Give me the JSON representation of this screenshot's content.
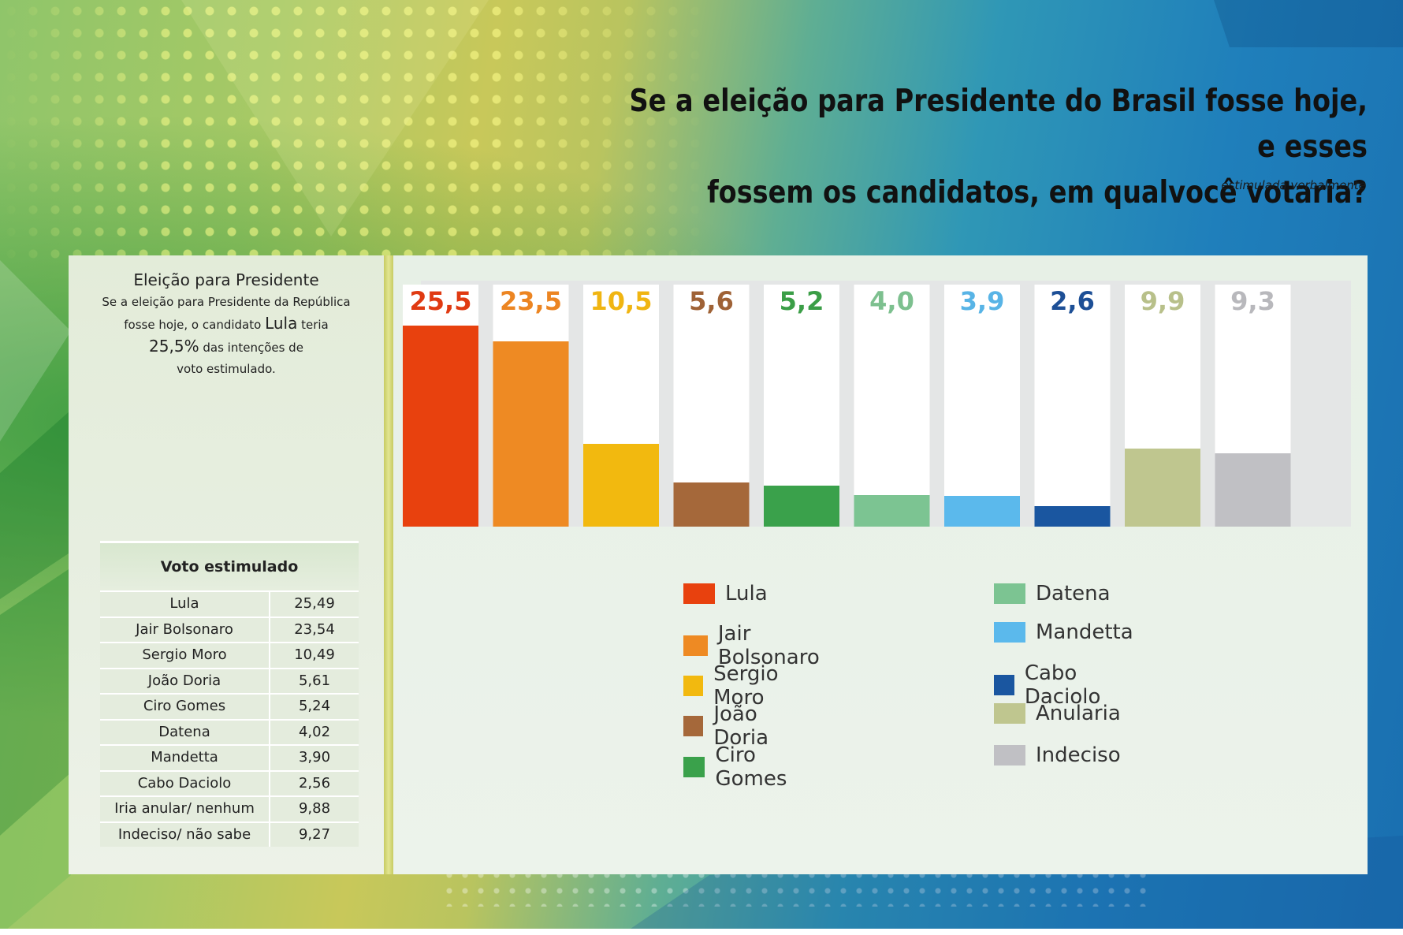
{
  "header": {
    "title_line1": "Se a eleição para Presidente do Brasil fosse hoje, e esses",
    "title_line2": "fossem os candidatos, em qualvocê votaria?",
    "note": "estimulada verbalmente"
  },
  "summary": {
    "heading": "Eleição para Presidente",
    "line1": "Se a eleição para Presidente da República",
    "line2_pre": "fosse hoje, o candidato ",
    "line2_name": "Lula",
    "line2_post": " teria",
    "line3_value": "25,5%",
    "line3_post": " das intenções de",
    "line4": "voto estimulado."
  },
  "table": {
    "header": "Voto estimulado",
    "rows": [
      {
        "name": "Lula",
        "value": "25,49"
      },
      {
        "name": "Jair Bolsonaro",
        "value": "23,54"
      },
      {
        "name": "Sergio Moro",
        "value": "10,49"
      },
      {
        "name": "João Doria",
        "value": "5,61"
      },
      {
        "name": "Ciro Gomes",
        "value": "5,24"
      },
      {
        "name": "Datena",
        "value": "4,02"
      },
      {
        "name": "Mandetta",
        "value": "3,90"
      },
      {
        "name": "Cabo Daciolo",
        "value": "2,56"
      },
      {
        "name": "Iria anular/ nenhum",
        "value": "9,88"
      },
      {
        "name": "Indeciso/ não sabe",
        "value": "9,27"
      }
    ]
  },
  "chart_data": {
    "type": "bar",
    "categories": [
      "Lula",
      "Jair Bolsonaro",
      "Sergio Moro",
      "João Doria",
      "Ciro Gomes",
      "Datena",
      "Mandetta",
      "Cabo Daciolo",
      "Anularia",
      "Indeciso"
    ],
    "values": [
      25.5,
      23.5,
      10.5,
      5.6,
      5.2,
      4.0,
      3.9,
      2.6,
      9.9,
      9.3
    ],
    "labels": [
      "25,5",
      "23,5",
      "10,5",
      "5,6",
      "5,2",
      "4,0",
      "3,9",
      "2,6",
      "9,9",
      "9,3"
    ],
    "colors": [
      "#e8410e",
      "#ee8a23",
      "#f2b90f",
      "#a5683a",
      "#3aa14b",
      "#7cc492",
      "#5bb9ec",
      "#1a56a0",
      "#bfc68f",
      "#c0c0c4"
    ],
    "label_colors": [
      "#e03a12",
      "#ec8522",
      "#f0b512",
      "#9f6236",
      "#3b9e47",
      "#7dc08f",
      "#58b4e6",
      "#1d4f96",
      "#b8c08a",
      "#b8b8bc"
    ],
    "ylim": [
      0,
      30
    ],
    "legend_position": "bottom",
    "grid": false
  }
}
